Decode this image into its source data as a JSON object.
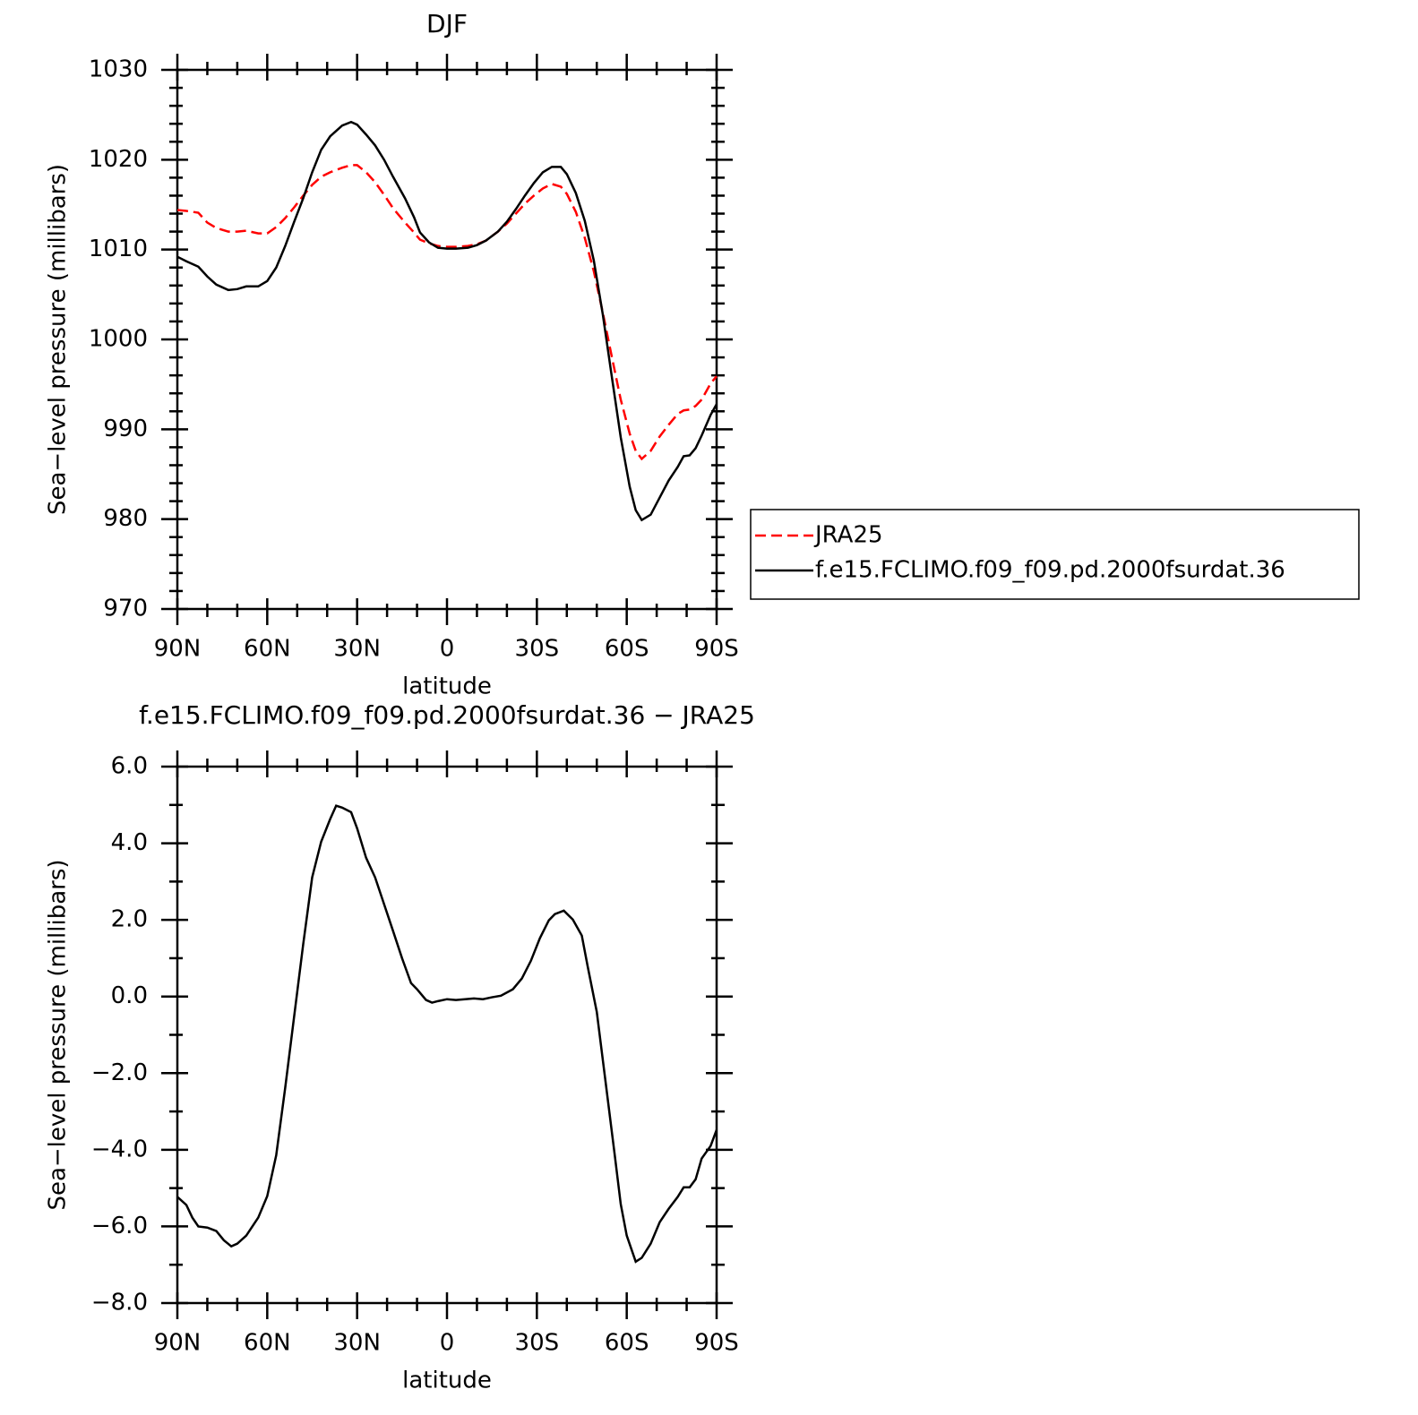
{
  "chart_data": [
    {
      "type": "line",
      "title": "DJF",
      "xlabel": "latitude",
      "ylabel": "Sea−level pressure (millibars)",
      "x": [
        90,
        87,
        83,
        80,
        77,
        73,
        70,
        67,
        63,
        60,
        57,
        54,
        51,
        48,
        45,
        42,
        39,
        35,
        32,
        30,
        27,
        24,
        21,
        18,
        14,
        11,
        9,
        6,
        3,
        0,
        -3,
        -7,
        -10,
        -13,
        -17,
        -20,
        -23,
        -26,
        -29,
        -32,
        -35,
        -38,
        -40,
        -43,
        -46,
        -49,
        -52,
        -55,
        -58,
        -61,
        -63,
        -65,
        -68,
        -71,
        -74,
        -77,
        -79,
        -81,
        -83,
        -85,
        -88,
        -90
      ],
      "series": [
        {
          "name": "JRA25",
          "color": "#ff0000",
          "style": "dashed",
          "values": [
            1014.4,
            1014.3,
            1014.1,
            1013.0,
            1012.4,
            1012.0,
            1012.0,
            1012.1,
            1011.8,
            1011.8,
            1012.5,
            1013.5,
            1014.7,
            1016.0,
            1017.2,
            1018.1,
            1018.6,
            1019.1,
            1019.4,
            1019.4,
            1018.6,
            1017.5,
            1016.1,
            1014.6,
            1013.0,
            1011.9,
            1011.1,
            1010.7,
            1010.4,
            1010.3,
            1010.3,
            1010.4,
            1010.6,
            1011.0,
            1012.0,
            1012.9,
            1014.0,
            1015.1,
            1016.0,
            1016.8,
            1017.3,
            1017.0,
            1016.2,
            1014.2,
            1011.3,
            1007.6,
            1003.0,
            998.1,
            993.3,
            989.5,
            987.6,
            986.7,
            987.6,
            989.2,
            990.5,
            991.7,
            992.1,
            992.2,
            992.6,
            993.3,
            995.1,
            995.9
          ]
        },
        {
          "name": "f.e15.FCLIMO.f09_f09.pd.2000fsurdat.36",
          "color": "#000000",
          "style": "solid",
          "values": [
            1009.2,
            1008.7,
            1008.1,
            1007.0,
            1006.1,
            1005.5,
            1005.6,
            1005.9,
            1005.9,
            1006.5,
            1008.0,
            1010.4,
            1013.1,
            1015.7,
            1018.6,
            1021.1,
            1022.6,
            1023.8,
            1024.2,
            1023.9,
            1022.8,
            1021.6,
            1020.0,
            1018.1,
            1015.7,
            1013.6,
            1011.9,
            1010.8,
            1010.2,
            1010.1,
            1010.1,
            1010.2,
            1010.5,
            1011.0,
            1012.0,
            1013.1,
            1014.5,
            1016.0,
            1017.4,
            1018.6,
            1019.2,
            1019.2,
            1018.4,
            1016.3,
            1013.2,
            1008.8,
            1002.8,
            995.9,
            989.1,
            983.6,
            981.0,
            979.9,
            980.5,
            982.4,
            984.3,
            985.8,
            987.0,
            987.1,
            987.9,
            989.3,
            991.6,
            992.8
          ]
        }
      ],
      "xlim": [
        90,
        -90
      ],
      "xticks": [
        {
          "value": 90,
          "label": "90N"
        },
        {
          "value": 60,
          "label": "60N"
        },
        {
          "value": 30,
          "label": "30N"
        },
        0,
        {
          "value": -30,
          "label": "30S"
        },
        {
          "value": -60,
          "label": "60S"
        },
        {
          "value": -90,
          "label": "90S"
        }
      ],
      "ylim": [
        970,
        1030
      ],
      "yticks": [
        970,
        980,
        990,
        1000,
        1010,
        1020,
        1030
      ],
      "legend": "right"
    },
    {
      "type": "line",
      "title": "f.e15.FCLIMO.f09_f09.pd.2000fsurdat.36 − JRA25",
      "xlabel": "latitude",
      "ylabel": "Sea−level pressure (millibars)",
      "x": [
        90,
        87,
        85,
        83,
        80,
        77,
        74.5,
        72,
        70,
        67,
        63,
        60,
        57,
        54,
        51,
        48,
        45,
        42,
        39,
        37,
        35,
        32,
        30,
        27,
        24,
        21,
        18,
        15,
        12,
        10,
        7,
        5,
        3,
        0,
        -3,
        -6,
        -9,
        -12,
        -15,
        -18,
        -22,
        -25,
        -28,
        -31,
        -34,
        -36,
        -39,
        -42,
        -45,
        -47,
        -50,
        -53,
        -56,
        -58,
        -60,
        -63,
        -65,
        -68,
        -71,
        -74,
        -77,
        -79,
        -81,
        -83,
        -85,
        -88,
        -90
      ],
      "values": [
        -5.23,
        -5.44,
        -5.77,
        -6.0,
        -6.03,
        -6.12,
        -6.36,
        -6.52,
        -6.45,
        -6.24,
        -5.77,
        -5.21,
        -4.14,
        -2.38,
        -0.51,
        1.36,
        3.11,
        4.04,
        4.63,
        4.98,
        4.93,
        4.81,
        4.39,
        3.62,
        3.11,
        2.41,
        1.71,
        1.0,
        0.35,
        0.19,
        -0.09,
        -0.16,
        -0.12,
        -0.07,
        -0.09,
        -0.07,
        -0.05,
        -0.07,
        -0.02,
        0.02,
        0.19,
        0.47,
        0.93,
        1.52,
        1.99,
        2.15,
        2.24,
        2.01,
        1.59,
        0.77,
        -0.4,
        -2.27,
        -4.14,
        -5.42,
        -6.24,
        -6.92,
        -6.82,
        -6.45,
        -5.89,
        -5.54,
        -5.23,
        -4.98,
        -4.98,
        -4.77,
        -4.23,
        -3.9,
        -3.48
      ],
      "color": "#000000",
      "xlim": [
        90,
        -90
      ],
      "xticks": [
        {
          "value": 90,
          "label": "90N"
        },
        {
          "value": 60,
          "label": "60N"
        },
        {
          "value": 30,
          "label": "30N"
        },
        0,
        {
          "value": -30,
          "label": "30S"
        },
        {
          "value": -60,
          "label": "60S"
        },
        {
          "value": -90,
          "label": "90S"
        }
      ],
      "ylim": [
        -8,
        6
      ],
      "yticks": [
        {
          "value": -8,
          "label": "−8.0"
        },
        {
          "value": -6,
          "label": "−6.0"
        },
        {
          "value": -4,
          "label": "−4.0"
        },
        {
          "value": -2,
          "label": "−2.0"
        },
        {
          "value": 0,
          "label": "0.0"
        },
        {
          "value": 2,
          "label": "2.0"
        },
        {
          "value": 4,
          "label": "4.0"
        },
        {
          "value": 6,
          "label": "6.0"
        }
      ]
    }
  ]
}
